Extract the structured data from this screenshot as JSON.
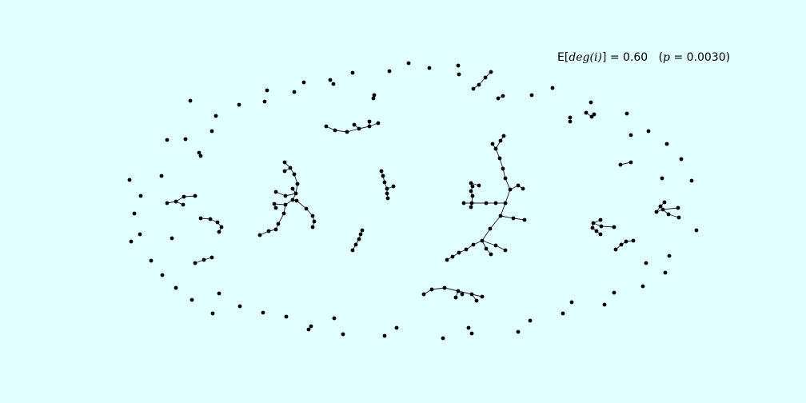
{
  "figure": {
    "background": "#e0ffff",
    "node_color": "#000000",
    "edge_color": "#2b0a3a",
    "caption": {
      "lhs_prefix": "E[",
      "lhs_var": "deg(i)",
      "lhs_suffix": "] = 0.60",
      "param_open": "(",
      "param_var": "p",
      "param_value": " = 0.0030)"
    }
  }
}
